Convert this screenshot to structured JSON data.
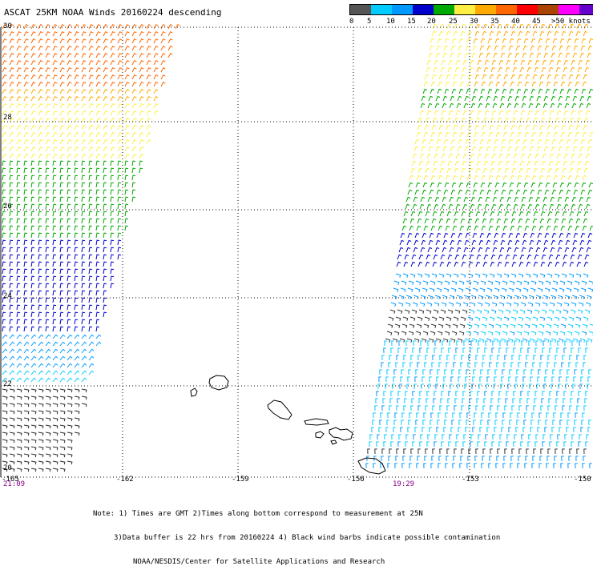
{
  "title": "ASCAT 25KM NOAA Winds 20160224 descending",
  "legend": {
    "colors": [
      "#555555",
      "#00ccff",
      "#0099ff",
      "#0000cc",
      "#00aa00",
      "#ffee44",
      "#ffaa00",
      "#ff6600",
      "#ff0000",
      "#aa4400",
      "#ff00ff",
      "#6600cc"
    ],
    "labels": [
      "0",
      "5",
      "10",
      "15",
      "20",
      "25",
      "30",
      "35",
      "40",
      "45",
      ">50 knots"
    ]
  },
  "map": {
    "lat_labels": [
      "30",
      "28",
      "26",
      "24",
      "22",
      "20"
    ],
    "lon_labels": [
      "-165",
      "-162",
      "-159",
      "-156",
      "-153",
      "-150"
    ],
    "pass_times": [
      "21:09",
      "19:29"
    ]
  },
  "notes": {
    "line1": "Note: 1) Times are GMT 2)Times along bottom correspond to measurement at 25N",
    "line2": "3)Data buffer is 22 hrs from 20160224 4) Black wind barbs indicate possible contamination",
    "line3": "NOAA/NESDIS/Center for Satellite Applications and Research"
  }
}
